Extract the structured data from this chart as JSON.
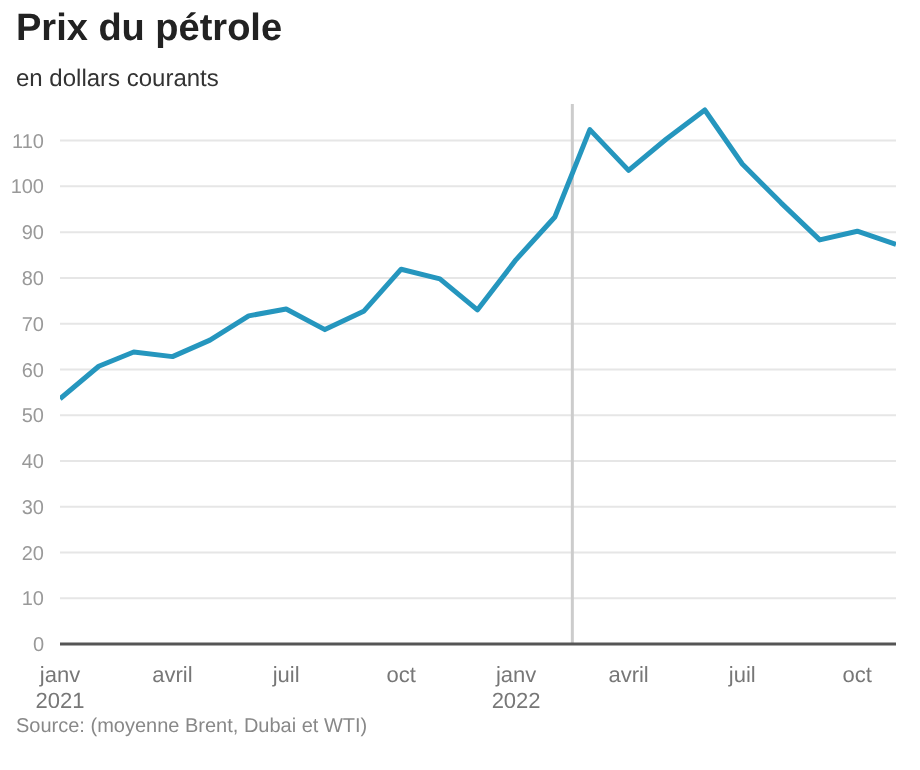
{
  "chart_data": {
    "type": "line",
    "title": "Prix du pétrole",
    "subtitle": "en dollars courants",
    "x": [
      "2021-01",
      "2021-02",
      "2021-03",
      "2021-04",
      "2021-05",
      "2021-06",
      "2021-07",
      "2021-08",
      "2021-09",
      "2021-10",
      "2021-11",
      "2021-12",
      "2022-01",
      "2022-02",
      "2022-03",
      "2022-04",
      "2022-05",
      "2022-06",
      "2022-07",
      "2022-08",
      "2022-09",
      "2022-10",
      "2022-11"
    ],
    "series": [
      {
        "color": "#2596be",
        "values": [
          53.6,
          60.7,
          63.8,
          62.8,
          66.4,
          71.7,
          73.2,
          68.7,
          72.7,
          81.9,
          79.8,
          73.0,
          84,
          93.3,
          112.4,
          103.5,
          110.3,
          116.7,
          104.9,
          96.4,
          88.3,
          90.2,
          87.3
        ]
      }
    ],
    "xlim": [
      "2021-01",
      "2022-11"
    ],
    "xticks": [
      {
        "value": "2021-01",
        "label": "janv 2021"
      },
      {
        "value": "2021-04",
        "label": "avril"
      },
      {
        "value": "2021-07",
        "label": "juil"
      },
      {
        "value": "2021-10",
        "label": "oct"
      },
      {
        "value": "2022-01",
        "label": "janv 2022"
      },
      {
        "value": "2022-04",
        "label": "avril"
      },
      {
        "value": "2022-07",
        "label": "juil"
      },
      {
        "value": "2022-10",
        "label": "oct"
      }
    ],
    "ylim": [
      0,
      118
    ],
    "yticks": [
      0,
      10,
      20,
      30,
      40,
      50,
      60,
      70,
      80,
      90,
      100,
      110
    ],
    "ref_lines": [
      {
        "axis": "x",
        "value": "2022-02-15",
        "color": "#cccccc"
      }
    ],
    "grid": "y",
    "marker": "none",
    "line_style": "solid",
    "annotations": [
      "Source: (moyenne Brent, Dubai et WTI)"
    ]
  }
}
